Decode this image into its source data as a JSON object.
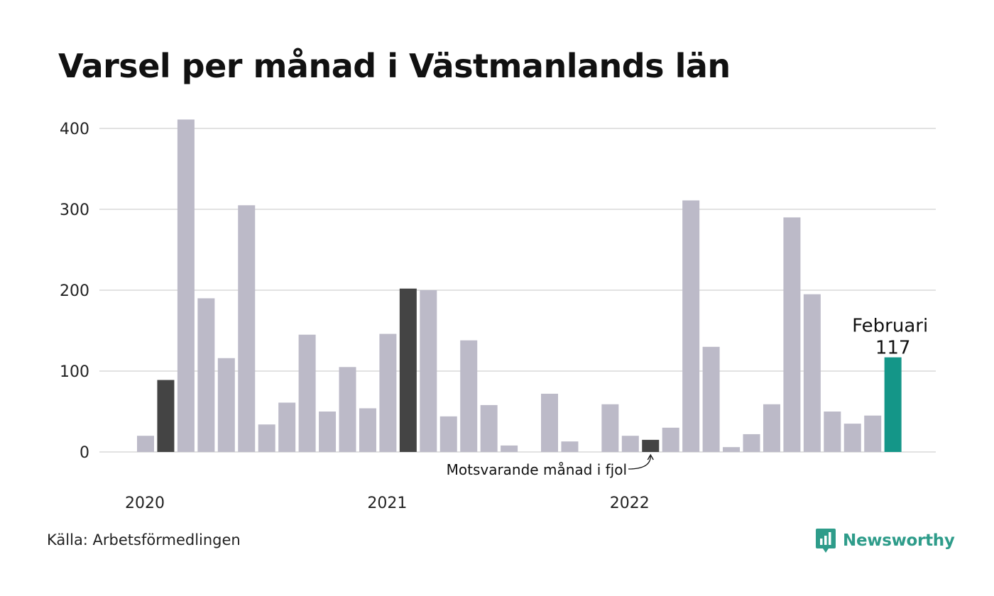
{
  "title": "Varsel per månad i Västmanlands län",
  "source": "Källa: Arbetsförmedlingen",
  "brand": {
    "name": "Newsworthy",
    "icon": "newsworthy-logo-icon"
  },
  "colors": {
    "bar": "#bcbac8",
    "previous_year": "#444444",
    "highlight": "#149688",
    "grid": "#e2e2e2",
    "brand": "#2e9c8a"
  },
  "chart_data": {
    "type": "bar",
    "ylim": [
      0,
      400
    ],
    "yticks": [
      0,
      100,
      200,
      300,
      400
    ],
    "grid": true,
    "xlabels": [
      {
        "label": "2020",
        "index": 0
      },
      {
        "label": "2021",
        "index": 12
      },
      {
        "label": "2022",
        "index": 24
      }
    ],
    "months": [
      {
        "period": "2020-01",
        "value": 20
      },
      {
        "period": "2020-02",
        "value": 89,
        "role": "previous_year"
      },
      {
        "period": "2020-03",
        "value": 411
      },
      {
        "period": "2020-04",
        "value": 190
      },
      {
        "period": "2020-05",
        "value": 116
      },
      {
        "period": "2020-06",
        "value": 305
      },
      {
        "period": "2020-07",
        "value": 34
      },
      {
        "period": "2020-08",
        "value": 61
      },
      {
        "period": "2020-09",
        "value": 145
      },
      {
        "period": "2020-10",
        "value": 50
      },
      {
        "period": "2020-11",
        "value": 105
      },
      {
        "period": "2020-12",
        "value": 54
      },
      {
        "period": "2021-01",
        "value": 146
      },
      {
        "period": "2021-02",
        "value": 202,
        "role": "previous_year"
      },
      {
        "period": "2021-03",
        "value": 200
      },
      {
        "period": "2021-04",
        "value": 44
      },
      {
        "period": "2021-05",
        "value": 138
      },
      {
        "period": "2021-06",
        "value": 58
      },
      {
        "period": "2021-07",
        "value": 8
      },
      {
        "period": "2021-08",
        "value": 0
      },
      {
        "period": "2021-09",
        "value": 72
      },
      {
        "period": "2021-10",
        "value": 13
      },
      {
        "period": "2021-11",
        "value": 0
      },
      {
        "period": "2021-12",
        "value": 59
      },
      {
        "period": "2022-01",
        "value": 20
      },
      {
        "period": "2022-02",
        "value": 15,
        "role": "previous_year"
      },
      {
        "period": "2022-03",
        "value": 30
      },
      {
        "period": "2022-04",
        "value": 311
      },
      {
        "period": "2022-05",
        "value": 130
      },
      {
        "period": "2022-06",
        "value": 6
      },
      {
        "period": "2022-07",
        "value": 22
      },
      {
        "period": "2022-08",
        "value": 59
      },
      {
        "period": "2022-09",
        "value": 290
      },
      {
        "period": "2022-10",
        "value": 195
      },
      {
        "period": "2022-11",
        "value": 50
      },
      {
        "period": "2022-12",
        "value": 35
      },
      {
        "period": "2023-01",
        "value": 45
      },
      {
        "period": "2023-02",
        "value": 117,
        "role": "highlight"
      }
    ],
    "highlight_label": {
      "month": "Februari",
      "value": "117"
    },
    "annotation": {
      "text": "Motsvarande månad i fjol",
      "target_period": "2022-02"
    }
  }
}
